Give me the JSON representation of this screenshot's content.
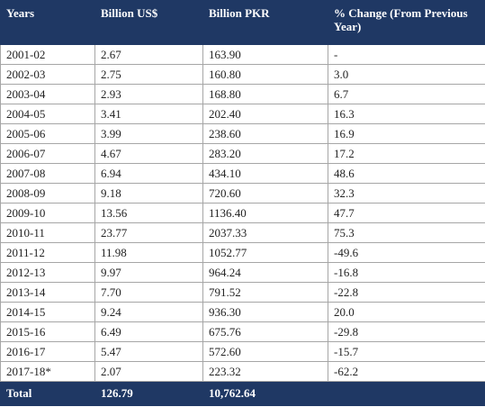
{
  "table": {
    "header": [
      "Years",
      "Billion US$",
      "Billion PKR",
      "% Change (From Previous Year)"
    ],
    "rows": [
      [
        "2001-02",
        "2.67",
        "163.90",
        "-"
      ],
      [
        "2002-03",
        "2.75",
        "160.80",
        "3.0"
      ],
      [
        "2003-04",
        "2.93",
        "168.80",
        "6.7"
      ],
      [
        "2004-05",
        "3.41",
        "202.40",
        "16.3"
      ],
      [
        "2005-06",
        "3.99",
        "238.60",
        "16.9"
      ],
      [
        "2006-07",
        "4.67",
        "283.20",
        "17.2"
      ],
      [
        "2007-08",
        "6.94",
        "434.10",
        "48.6"
      ],
      [
        "2008-09",
        "9.18",
        "720.60",
        "32.3"
      ],
      [
        "2009-10",
        "13.56",
        "1136.40",
        "47.7"
      ],
      [
        "2010-11",
        "23.77",
        "2037.33",
        "75.3"
      ],
      [
        "2011-12",
        "11.98",
        "1052.77",
        "-49.6"
      ],
      [
        "2012-13",
        "9.97",
        "964.24",
        "-16.8"
      ],
      [
        "2013-14",
        "7.70",
        "791.52",
        "-22.8"
      ],
      [
        "2014-15",
        "9.24",
        "936.30",
        "20.0"
      ],
      [
        "2015-16",
        "6.49",
        "675.76",
        "-29.8"
      ],
      [
        "2016-17",
        "5.47",
        "572.60",
        "-15.7"
      ],
      [
        "2017-18*",
        "2.07",
        "223.32",
        "-62.2"
      ]
    ],
    "total": [
      "Total",
      "126.79",
      "10,762.64"
    ]
  }
}
